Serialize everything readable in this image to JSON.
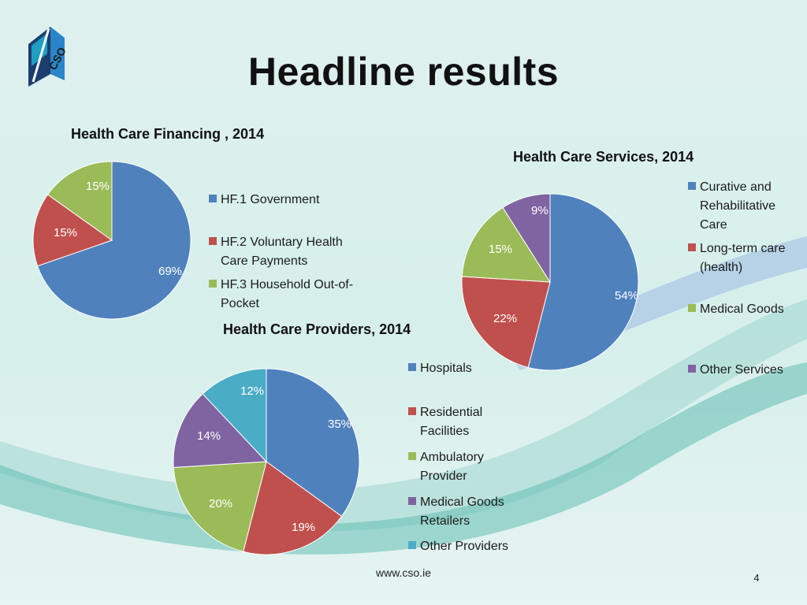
{
  "slide": {
    "title": "Headline results",
    "footer_url": "www.cso.ie",
    "page_number": "4",
    "logo_text": "CSO"
  },
  "chart_data": [
    {
      "type": "pie",
      "title": "Health Care Financing , 2014",
      "categories": [
        "HF.1 Government",
        "HF.2 Voluntary Health Care Payments",
        "HF.3 Household Out-of-Pocket"
      ],
      "legend_lines": [
        [
          "HF.1 Government"
        ],
        [
          "HF.2 Voluntary Health",
          "Care Payments"
        ],
        [
          "HF.3 Household Out-of-",
          "Pocket"
        ]
      ],
      "values": [
        69,
        15,
        15
      ],
      "labels": [
        "69%",
        "15%",
        "15%"
      ],
      "colors": [
        "#4f81bd",
        "#c0504d",
        "#9bbb59"
      ],
      "legend_position": "right"
    },
    {
      "type": "pie",
      "title": "Health Care Services, 2014",
      "categories": [
        "Curative and Rehabilitative Care",
        "Long-term care (health)",
        "Medical Goods",
        "Other Services"
      ],
      "legend_lines": [
        [
          "Curative and",
          "Rehabilitative",
          "Care"
        ],
        [
          "Long-term care",
          "(health)"
        ],
        [
          "Medical Goods"
        ],
        [
          "Other Services"
        ]
      ],
      "values": [
        54,
        22,
        15,
        9
      ],
      "labels": [
        "54%",
        "22%",
        "15%",
        "9%"
      ],
      "colors": [
        "#4f81bd",
        "#c0504d",
        "#9bbb59",
        "#8064a2"
      ],
      "legend_position": "right"
    },
    {
      "type": "pie",
      "title": "Health Care Providers, 2014",
      "categories": [
        "Hospitals",
        "Residential Facilities",
        "Ambulatory Provider",
        "Medical Goods Retailers",
        "Other Providers"
      ],
      "legend_lines": [
        [
          "Hospitals"
        ],
        [
          "Residential",
          "Facilities"
        ],
        [
          "Ambulatory",
          "Provider"
        ],
        [
          "Medical Goods",
          "Retailers"
        ],
        [
          "Other Providers"
        ]
      ],
      "values": [
        35,
        19,
        20,
        14,
        12
      ],
      "labels": [
        "35%",
        "19%",
        "20%",
        "14%",
        "12%"
      ],
      "colors": [
        "#4f81bd",
        "#c0504d",
        "#9bbb59",
        "#8064a2",
        "#4bacc6"
      ],
      "legend_position": "right"
    }
  ]
}
